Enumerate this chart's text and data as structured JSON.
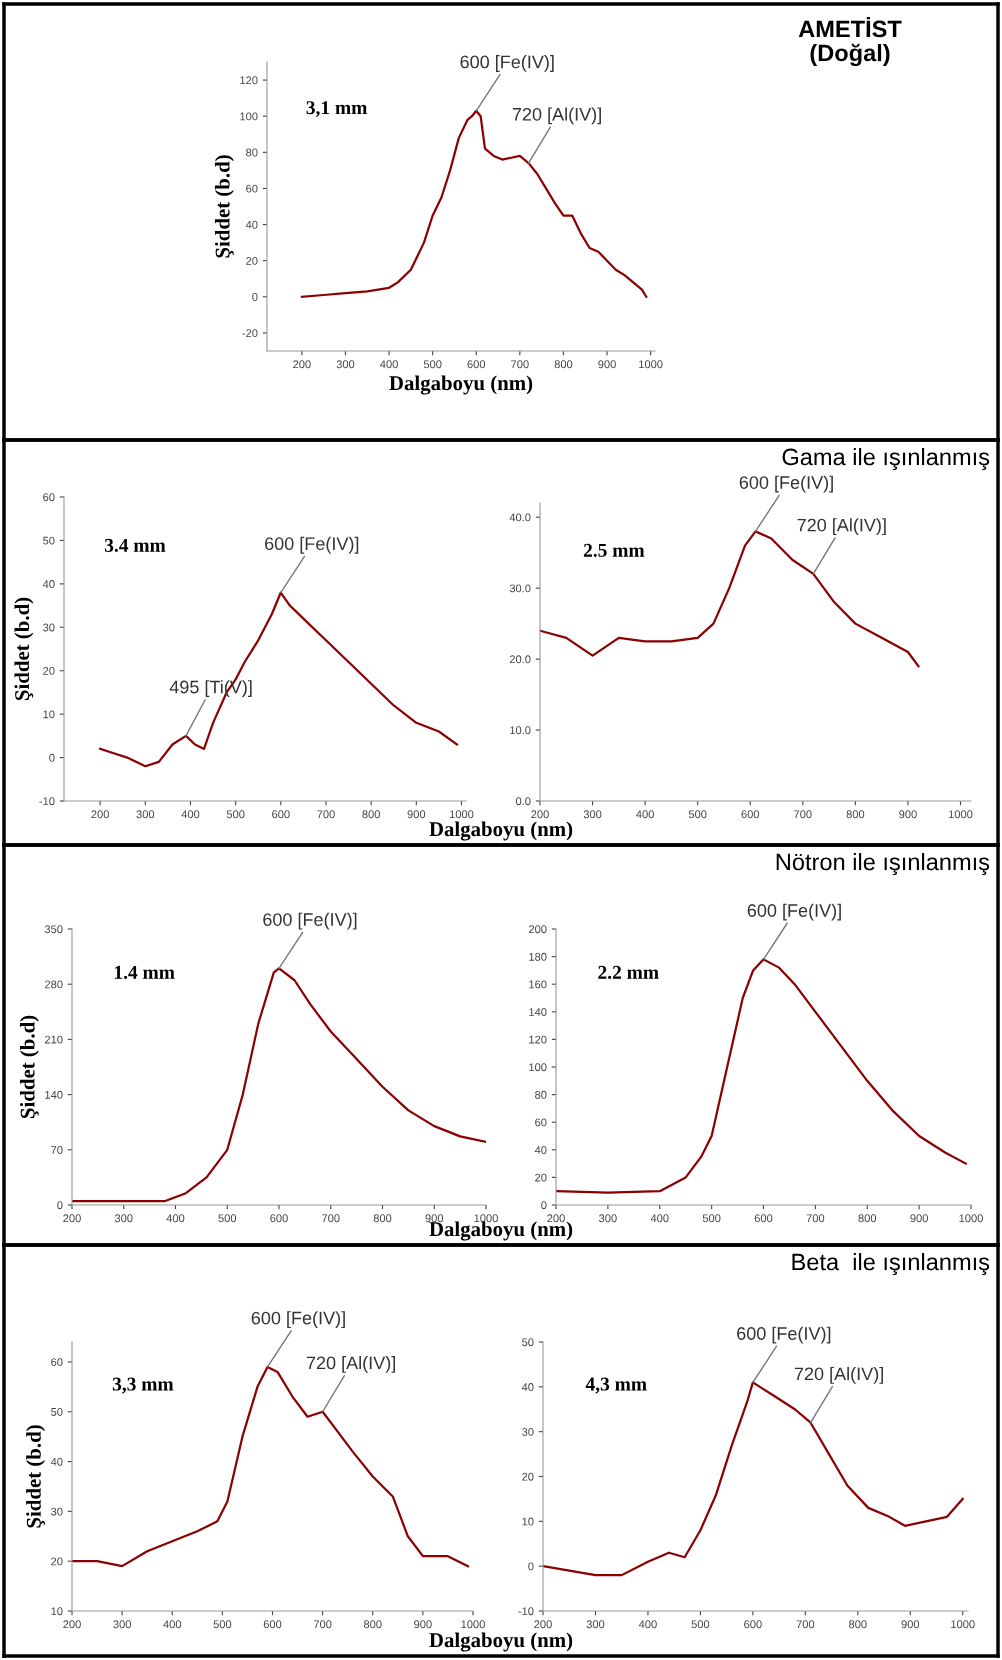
{
  "chart_data": [
    {
      "type": "line",
      "xlabel": "Dalgaboyu (nm)",
      "ylabel": "Şiddet (b.d)",
      "color": "#8b0000",
      "x": [
        200,
        250,
        300,
        350,
        400,
        420,
        450,
        480,
        500,
        520,
        540,
        560,
        580,
        590,
        600,
        610,
        620,
        640,
        660,
        680,
        700,
        720,
        740,
        760,
        780,
        800,
        820,
        840,
        860,
        880,
        900,
        920,
        940,
        960,
        980,
        990
      ],
      "values": [
        0,
        1,
        2,
        3,
        5,
        8,
        15,
        30,
        45,
        55,
        70,
        88,
        98,
        100,
        103,
        100,
        82,
        78,
        76,
        77,
        78,
        74,
        68,
        60,
        52,
        45,
        45,
        35,
        27,
        25,
        20,
        15,
        12,
        8,
        4,
        0
      ],
      "xlim": [
        120,
        1010
      ],
      "ylim": [
        -30,
        130
      ],
      "xticks": [
        200,
        300,
        400,
        500,
        600,
        700,
        800,
        900,
        1000
      ],
      "yticks": [
        -20,
        0,
        20,
        40,
        60,
        80,
        100,
        120
      ],
      "annotations": [
        "3,1 mm",
        "AMETİST\n(Doğal)",
        {
          "text": "600 [Fe(IV)]",
          "x": 600,
          "y": 103
        },
        {
          "text": "720 [Al(IV)]",
          "x": 720,
          "y": 74
        }
      ]
    },
    {
      "type": "line",
      "xlabel": "Dalgaboyu (nm)",
      "ylabel": "Şiddet (b.d)",
      "color": "#8b0000",
      "x": [
        200,
        230,
        260,
        300,
        330,
        360,
        390,
        410,
        430,
        450,
        480,
        500,
        520,
        550,
        580,
        600,
        620,
        650,
        700,
        750,
        800,
        850,
        900,
        950,
        990
      ],
      "values": [
        2,
        1,
        0,
        -2,
        -1,
        3,
        5,
        3,
        2,
        8,
        15,
        18,
        22,
        27,
        33,
        38,
        35,
        32,
        27,
        22,
        17,
        12,
        8,
        6,
        3
      ],
      "xlim": [
        120,
        1010
      ],
      "ylim": [
        -10,
        60
      ],
      "xticks": [
        200,
        300,
        400,
        500,
        600,
        700,
        800,
        900,
        1000
      ],
      "yticks": [
        -10,
        0,
        10,
        20,
        30,
        40,
        50,
        60
      ],
      "annotations": [
        "3.4 mm",
        {
          "text": "600 [Fe(IV)]",
          "x": 600,
          "y": 38
        },
        {
          "text": "495 [Ti(V)]",
          "x": 390,
          "y": 5
        }
      ]
    },
    {
      "type": "line",
      "title": "Gama ile ışınlanmış",
      "color": "#8b0000",
      "x": [
        200,
        250,
        300,
        350,
        400,
        450,
        500,
        530,
        560,
        590,
        610,
        640,
        680,
        720,
        760,
        800,
        850,
        900,
        920
      ],
      "values": [
        24,
        23,
        20.5,
        23,
        22.5,
        22.5,
        23,
        25,
        30,
        36,
        38,
        37,
        34,
        32,
        28,
        25,
        23,
        21,
        19
      ],
      "xlim": [
        200,
        1020
      ],
      "ylim": [
        0,
        42
      ],
      "xticks": [
        200,
        300,
        400,
        500,
        600,
        700,
        800,
        900,
        1000
      ],
      "yticks": [
        {
          "value": 0,
          "label": "0.0"
        },
        {
          "value": 10,
          "label": "10.0"
        },
        {
          "value": 20,
          "label": "20.0"
        },
        {
          "value": 30,
          "label": "30.0"
        },
        {
          "value": 40,
          "label": "40.0"
        }
      ],
      "annotations": [
        "2.5 mm",
        {
          "text": "600 [Fe(IV)]",
          "x": 610,
          "y": 38
        },
        {
          "text": "720 [Al(IV)]",
          "x": 720,
          "y": 32
        }
      ]
    },
    {
      "type": "line",
      "xlabel": "Dalgaboyu (nm)",
      "ylabel": "Şiddet (b.d)",
      "color": "#8b0000",
      "x": [
        200,
        300,
        380,
        420,
        460,
        500,
        530,
        560,
        590,
        600,
        630,
        660,
        700,
        750,
        800,
        850,
        900,
        950,
        1000
      ],
      "values": [
        5,
        5,
        5,
        15,
        35,
        70,
        140,
        230,
        295,
        300,
        285,
        255,
        220,
        185,
        150,
        120,
        100,
        87,
        80
      ],
      "xlim": [
        200,
        1000
      ],
      "ylim": [
        0,
        350
      ],
      "xticks": [
        200,
        300,
        400,
        500,
        600,
        700,
        800,
        900,
        1000
      ],
      "yticks": [
        0,
        70,
        140,
        210,
        280,
        350
      ],
      "annotations": [
        "1.4 mm",
        {
          "text": "600 [Fe(IV)]",
          "x": 600,
          "y": 300
        }
      ]
    },
    {
      "type": "line",
      "title": "Nötron ile ışınlanmış",
      "color": "#8b0000",
      "x": [
        200,
        300,
        400,
        450,
        480,
        500,
        530,
        560,
        580,
        600,
        630,
        660,
        700,
        750,
        800,
        850,
        900,
        950,
        990
      ],
      "values": [
        10,
        9,
        10,
        20,
        35,
        50,
        100,
        150,
        170,
        178,
        172,
        160,
        140,
        115,
        90,
        68,
        50,
        38,
        30
      ],
      "xlim": [
        200,
        1000
      ],
      "ylim": [
        0,
        200
      ],
      "xticks": [
        200,
        300,
        400,
        500,
        600,
        700,
        800,
        900,
        1000
      ],
      "yticks": [
        0,
        20,
        40,
        60,
        80,
        100,
        120,
        140,
        160,
        180,
        200
      ],
      "annotations": [
        "2.2 mm",
        {
          "text": "600 [Fe(IV)]",
          "x": 600,
          "y": 178
        }
      ]
    },
    {
      "type": "line",
      "xlabel": "Dalgaboyu (nm)",
      "ylabel": "Şiddet (b.d)",
      "color": "#8b0000",
      "x": [
        200,
        250,
        300,
        350,
        400,
        450,
        490,
        510,
        540,
        570,
        590,
        610,
        640,
        670,
        700,
        730,
        760,
        800,
        840,
        870,
        900,
        950,
        990
      ],
      "values": [
        20,
        20,
        19,
        22,
        24,
        26,
        28,
        32,
        45,
        55,
        59,
        58,
        53,
        49,
        50,
        46,
        42,
        37,
        33,
        25,
        21,
        21,
        19
      ],
      "xlim": [
        200,
        1000
      ],
      "ylim": [
        10,
        64
      ],
      "xticks": [
        200,
        300,
        400,
        500,
        600,
        700,
        800,
        900,
        1000
      ],
      "yticks": [
        10,
        20,
        30,
        40,
        50,
        60
      ],
      "annotations": [
        "3,3 mm",
        {
          "text": "600 [Fe(IV)]",
          "x": 590,
          "y": 59
        },
        {
          "text": "720 [Al(IV)]",
          "x": 700,
          "y": 50
        }
      ]
    },
    {
      "type": "line",
      "title": "Beta  ile ışınlanmış",
      "color": "#8b0000",
      "x": [
        200,
        250,
        300,
        350,
        400,
        440,
        470,
        500,
        530,
        560,
        590,
        600,
        640,
        680,
        710,
        740,
        780,
        820,
        860,
        890,
        930,
        970,
        1000
      ],
      "values": [
        0,
        -1,
        -2,
        -2,
        1,
        3,
        2,
        8,
        16,
        27,
        37,
        41,
        38,
        35,
        32,
        26,
        18,
        13,
        11,
        9,
        10,
        11,
        15
      ],
      "xlim": [
        200,
        1010
      ],
      "ylim": [
        -10,
        50
      ],
      "xticks": [
        200,
        300,
        400,
        500,
        600,
        700,
        800,
        900,
        1000
      ],
      "yticks": [
        -10,
        0,
        10,
        20,
        30,
        40,
        50
      ],
      "annotations": [
        "4,3 mm",
        {
          "text": "600 [Fe(IV)]",
          "x": 600,
          "y": 41
        },
        {
          "text": "720 [Al(IV)]",
          "x": 710,
          "y": 32
        }
      ]
    }
  ]
}
